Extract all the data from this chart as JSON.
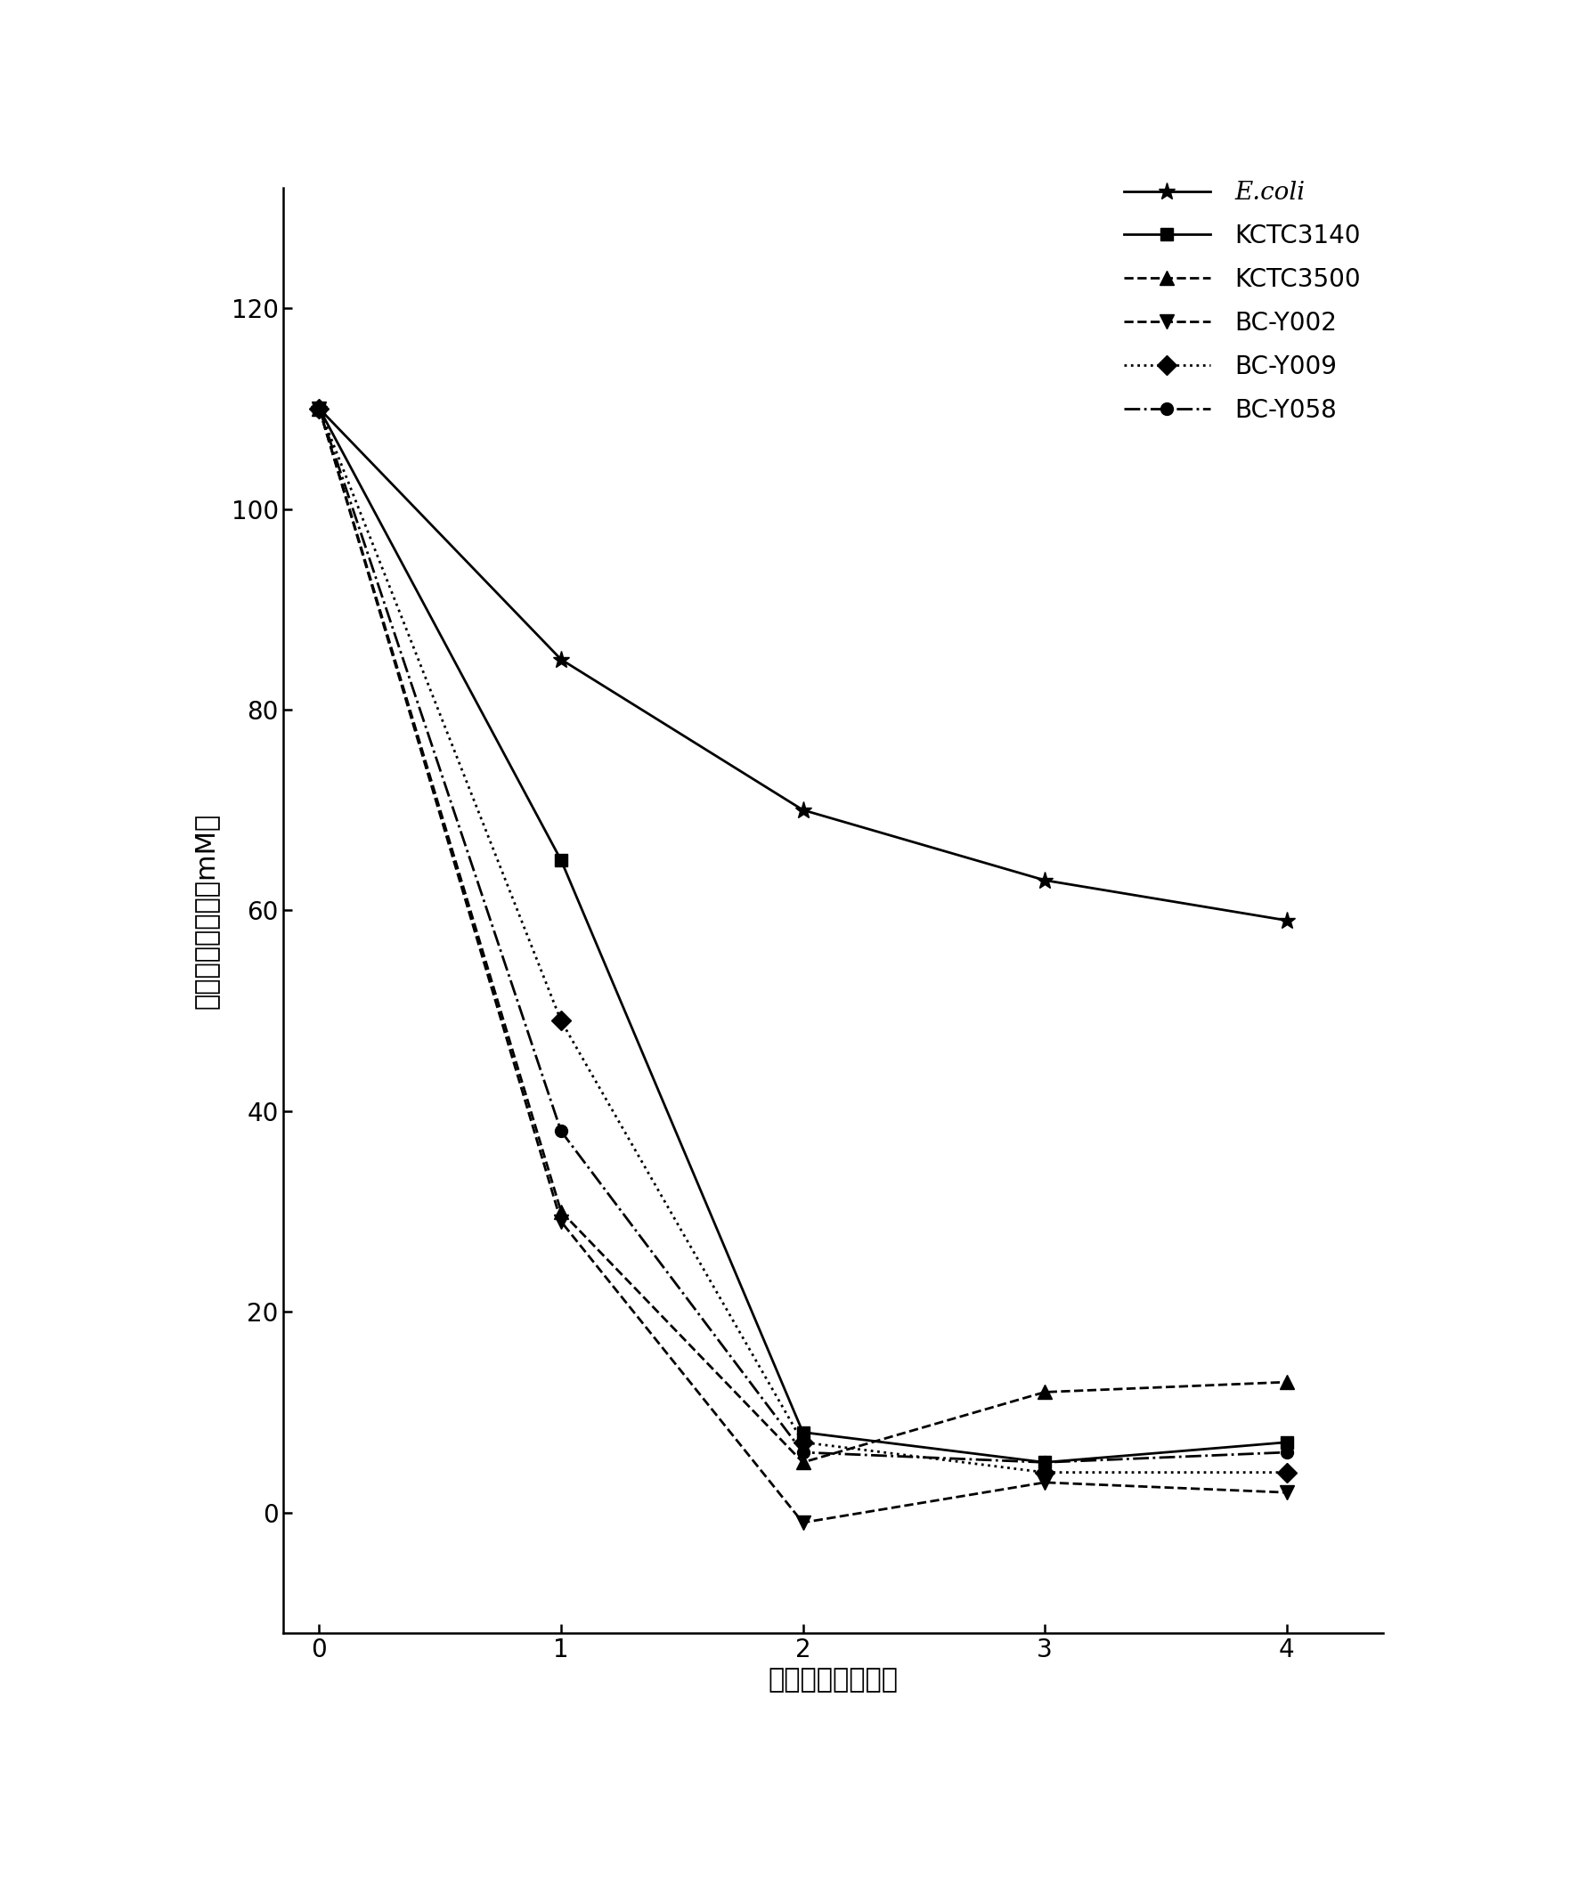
{
  "series": [
    {
      "label": "E.coli",
      "x": [
        0,
        1,
        2,
        3,
        4
      ],
      "y": [
        110,
        85,
        70,
        63,
        59
      ],
      "linestyle": "-",
      "marker": "*",
      "color": "black",
      "markersize": 14,
      "linewidth": 2.0
    },
    {
      "label": "KCTC3140",
      "x": [
        0,
        1,
        2,
        3,
        4
      ],
      "y": [
        110,
        65,
        8,
        5,
        7
      ],
      "linestyle": "-",
      "marker": "s",
      "color": "black",
      "markersize": 10,
      "linewidth": 2.0
    },
    {
      "label": "KCTC3500",
      "x": [
        0,
        1,
        2,
        3,
        4
      ],
      "y": [
        110,
        30,
        5,
        12,
        13
      ],
      "linestyle": "--",
      "marker": "^",
      "color": "black",
      "markersize": 11,
      "linewidth": 2.0
    },
    {
      "label": "BC-Y002",
      "x": [
        0,
        1,
        2,
        3,
        4
      ],
      "y": [
        110,
        29,
        -1,
        3,
        2
      ],
      "linestyle": "--",
      "marker": "v",
      "color": "black",
      "markersize": 11,
      "linewidth": 2.0
    },
    {
      "label": "BC-Y009",
      "x": [
        0,
        1,
        2,
        3,
        4
      ],
      "y": [
        110,
        49,
        7,
        4,
        4
      ],
      "linestyle": ":",
      "marker": "D",
      "color": "black",
      "markersize": 11,
      "linewidth": 2.0
    },
    {
      "label": "BC-Y058",
      "x": [
        0,
        1,
        2,
        3,
        4
      ],
      "y": [
        110,
        38,
        6,
        5,
        6
      ],
      "linestyle": "-.",
      "marker": "o",
      "color": "black",
      "markersize": 10,
      "linewidth": 2.0
    }
  ],
  "xlabel_zh": "温育时间（小时）",
  "ylabel_zh": "残留葡萄糖浓度（mM）",
  "xlim": [
    -0.15,
    4.4
  ],
  "ylim": [
    -12,
    132
  ],
  "yticks": [
    0,
    20,
    40,
    60,
    80,
    100,
    120
  ],
  "xticks": [
    0,
    1,
    2,
    3,
    4
  ],
  "legend_italic": [
    true,
    false,
    false,
    false,
    false,
    false
  ],
  "background_color": "#ffffff",
  "label_fontsize": 22,
  "tick_fontsize": 20,
  "legend_fontsize": 20
}
